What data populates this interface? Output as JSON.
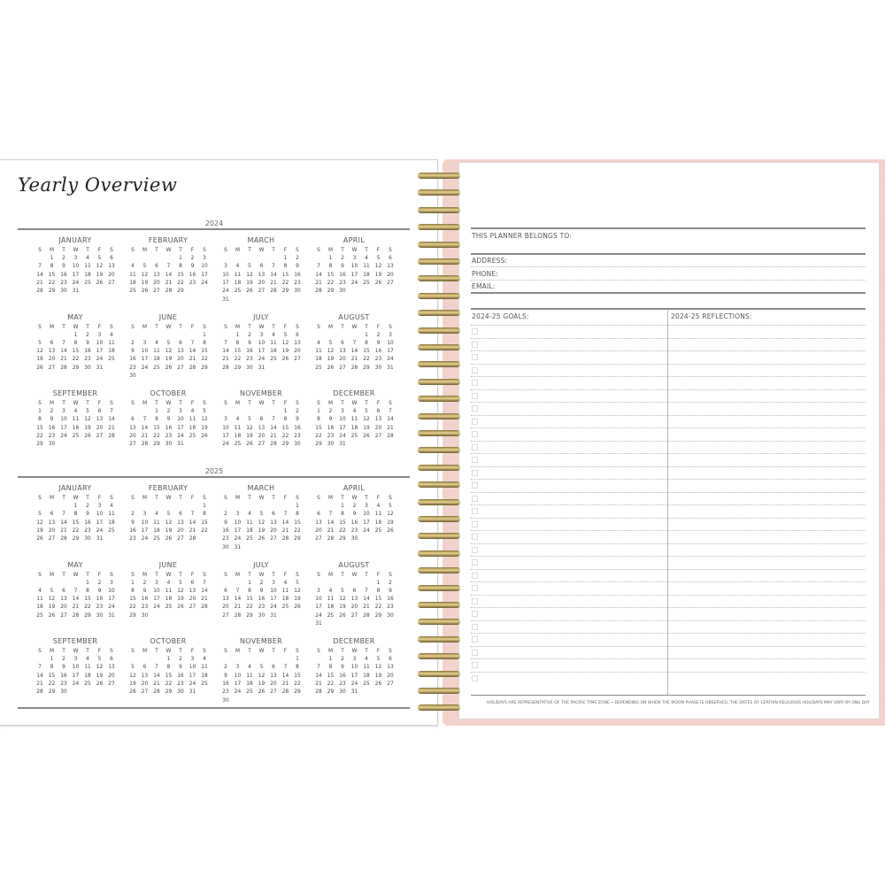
{
  "left_page": {
    "title": "Yearly Overview",
    "weekdays": [
      "S",
      "M",
      "T",
      "W",
      "T",
      "F",
      "S"
    ],
    "years": [
      {
        "year": "2024",
        "months": [
          {
            "name": "JANUARY",
            "weeks": [
              ",1,2,3,4,5,6",
              "7,8,9,10,11,12,13",
              "14,15,16,17,18,19,20",
              "21,22,23,24,25,26,27",
              "28,29,30,31"
            ]
          },
          {
            "name": "FEBRUARY",
            "weeks": [
              ",,,,1,2,3",
              "4,5,6,7,8,9,10",
              "11,12,13,14,15,16,17",
              "18,19,20,21,22,23,24",
              "25,26,27,28,29"
            ]
          },
          {
            "name": "MARCH",
            "weeks": [
              ",,,,,1,2",
              "3,4,5,6,7,8,9",
              "10,11,12,13,14,15,16",
              "17,18,19,20,21,22,23",
              "24,25,26,27,28,29,30",
              "31"
            ]
          },
          {
            "name": "APRIL",
            "weeks": [
              ",1,2,3,4,5,6",
              "7,8,9,10,11,12,13",
              "14,15,16,17,18,19,20",
              "21,22,23,24,25,26,27",
              "28,29,30"
            ]
          },
          {
            "name": "MAY",
            "weeks": [
              ",,,1,2,3,4",
              "5,6,7,8,9,10,11",
              "12,13,14,15,16,17,18",
              "19,20,21,22,23,24,25",
              "26,27,28,29,30,31"
            ]
          },
          {
            "name": "JUNE",
            "weeks": [
              ",,,,,,1",
              "2,3,4,5,6,7,8",
              "9,10,11,12,13,14,15",
              "16,17,18,19,20,21,22",
              "23,24,25,26,27,28,29",
              "30"
            ]
          },
          {
            "name": "JULY",
            "weeks": [
              ",1,2,3,4,5,6",
              "7,8,9,10,11,12,13",
              "14,15,16,17,18,19,20",
              "21,22,23,24,25,26,27",
              "28,29,30,31"
            ]
          },
          {
            "name": "AUGUST",
            "weeks": [
              ",,,,1,2,3",
              "4,5,6,7,8,9,10",
              "11,12,13,14,15,16,17",
              "18,19,20,21,22,23,24",
              "25,26,27,28,29,30,31"
            ]
          },
          {
            "name": "SEPTEMBER",
            "weeks": [
              "1,2,3,4,5,6,7",
              "8,9,10,11,12,13,14",
              "15,16,17,18,19,20,21",
              "22,23,24,25,26,27,28",
              "29,30"
            ]
          },
          {
            "name": "OCTOBER",
            "weeks": [
              ",,1,2,3,4,5",
              "6,7,8,9,10,11,12",
              "13,14,15,16,17,18,19",
              "20,21,22,23,24,25,26",
              "27,28,29,30,31"
            ]
          },
          {
            "name": "NOVEMBER",
            "weeks": [
              ",,,,,1,2",
              "3,4,5,6,7,8,9",
              "10,11,12,13,14,15,16",
              "17,18,19,20,21,22,23",
              "24,25,26,27,28,29,30"
            ]
          },
          {
            "name": "DECEMBER",
            "weeks": [
              "1,2,3,4,5,6,7",
              "8,9,10,11,12,13,14",
              "15,16,17,18,19,20,21",
              "22,23,24,25,26,27,28",
              "29,30,31"
            ]
          }
        ]
      },
      {
        "year": "2025",
        "months": [
          {
            "name": "JANUARY",
            "weeks": [
              ",,,1,2,3,4",
              "5,6,7,8,9,10,11",
              "12,13,14,15,16,17,18",
              "19,20,21,22,23,24,25",
              "26,27,28,29,30,31"
            ]
          },
          {
            "name": "FEBRUARY",
            "weeks": [
              ",,,,,,1",
              "2,3,4,5,6,7,8",
              "9,10,11,12,13,14,15",
              "16,17,18,19,20,21,22",
              "23,24,25,26,27,28"
            ]
          },
          {
            "name": "MARCH",
            "weeks": [
              ",,,,,,1",
              "2,3,4,5,6,7,8",
              "9,10,11,12,13,14,15",
              "16,17,18,19,20,21,22",
              "23,24,25,26,27,28,29",
              "30,31"
            ]
          },
          {
            "name": "APRIL",
            "weeks": [
              ",,1,2,3,4,5",
              "6,7,8,9,10,11,12",
              "13,14,15,16,17,18,19",
              "20,21,22,23,24,25,26",
              "27,28,29,30"
            ]
          },
          {
            "name": "MAY",
            "weeks": [
              ",,,,1,2,3",
              "4,5,6,7,8,9,10",
              "11,12,13,14,15,16,17",
              "18,19,20,21,22,23,24",
              "25,26,27,28,29,30,31"
            ]
          },
          {
            "name": "JUNE",
            "weeks": [
              "1,2,3,4,5,6,7",
              "8,9,10,11,12,13,14",
              "15,16,17,18,19,20,21",
              "22,23,24,25,26,27,28",
              "29,30"
            ]
          },
          {
            "name": "JULY",
            "weeks": [
              ",,1,2,3,4,5",
              "6,7,8,9,10,11,12",
              "13,14,15,16,17,18,19",
              "20,21,22,23,24,25,26",
              "27,28,29,30,31"
            ]
          },
          {
            "name": "AUGUST",
            "weeks": [
              ",,,,,1,2",
              "3,4,5,6,7,8,9",
              "10,11,12,13,14,15,16",
              "17,18,19,20,21,22,23",
              "24,25,26,27,28,29,30",
              "31"
            ]
          },
          {
            "name": "SEPTEMBER",
            "weeks": [
              ",1,2,3,4,5,6",
              "7,8,9,10,11,12,13",
              "14,15,16,17,18,19,20",
              "21,22,23,24,25,26,27",
              "28,29,30"
            ]
          },
          {
            "name": "OCTOBER",
            "weeks": [
              ",,,1,2,3,4",
              "5,6,7,8,9,10,11",
              "12,13,14,15,16,17,18",
              "19,20,21,22,23,24,25",
              "26,27,28,29,30,31"
            ]
          },
          {
            "name": "NOVEMBER",
            "weeks": [
              ",,,,,,1",
              "2,3,4,5,6,7,8",
              "9,10,11,12,13,14,15",
              "16,17,18,19,20,21,22",
              "23,24,25,26,27,28,29",
              "30"
            ]
          },
          {
            "name": "DECEMBER",
            "weeks": [
              ",1,2,3,4,5,6",
              "7,8,9,10,11,12,13",
              "14,15,16,17,18,19,20",
              "21,22,23,24,25,26,27",
              "28,29,30,31"
            ]
          }
        ]
      }
    ]
  },
  "right_page": {
    "belongs_to": "THIS PLANNER BELONGS TO:",
    "address": "ADDRESS:",
    "phone": "PHONE:",
    "email": "EMAIL:",
    "goals_header": "2024-25 GOALS:",
    "reflections_header": "2024-25 REFLECTIONS:",
    "footer": "HOLIDAYS ARE REPRESENTATIVE OF THE PACIFIC TIME ZONE  •  DEPENDING ON WHEN THE MOON PHASE IS OBSERVED, THE DATES OF CERTAIN RELIGIOUS HOLIDAYS MAY VARY BY ONE DAY"
  },
  "colors": {
    "cover": "#f2d3cc",
    "coil": "#c9b06a",
    "rule": "#8a8a8a"
  }
}
